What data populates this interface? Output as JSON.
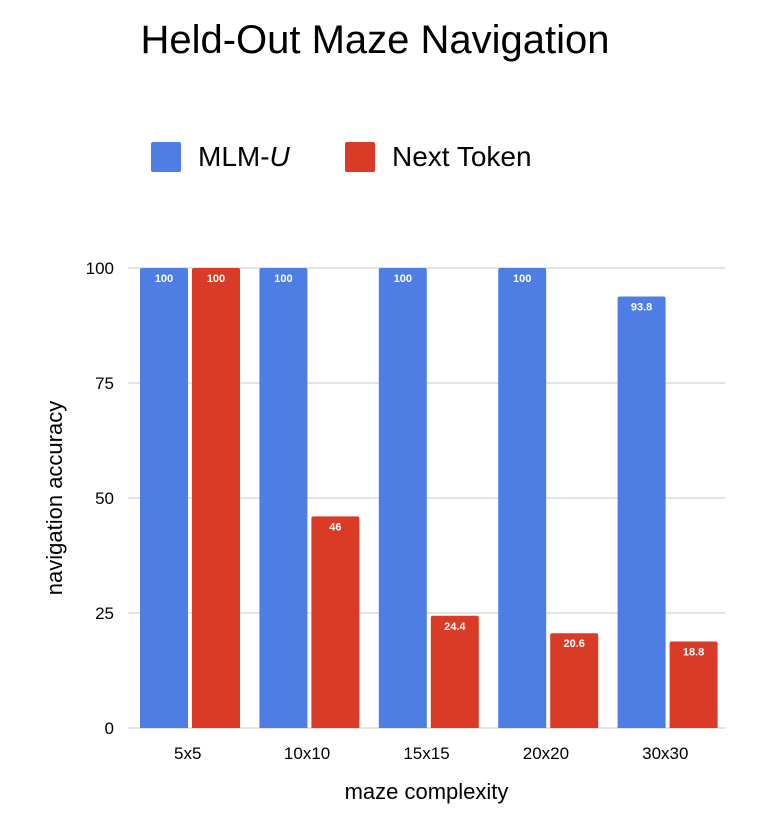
{
  "chart_data": {
    "type": "bar",
    "title": "Held-Out Maze Navigation",
    "xlabel": "maze complexity",
    "ylabel": "navigation accuracy",
    "categories": [
      "5x5",
      "10x10",
      "15x15",
      "20x20",
      "30x30"
    ],
    "series": [
      {
        "name": "MLM-U",
        "values": [
          100,
          100,
          100,
          100,
          93.8
        ],
        "labels": [
          "100",
          "100",
          "100",
          "100",
          "93.8"
        ],
        "color": "#4E7EE3"
      },
      {
        "name": "Next Token",
        "values": [
          100,
          46,
          24.4,
          20.6,
          18.8
        ],
        "labels": [
          "100",
          "46",
          "24.4",
          "20.6",
          "18.8"
        ],
        "color": "#D93B27"
      }
    ],
    "ylim": [
      0,
      100
    ],
    "yticks": [
      "0",
      "25",
      "50",
      "75",
      "100"
    ],
    "grid": true,
    "legend": "top-left"
  }
}
